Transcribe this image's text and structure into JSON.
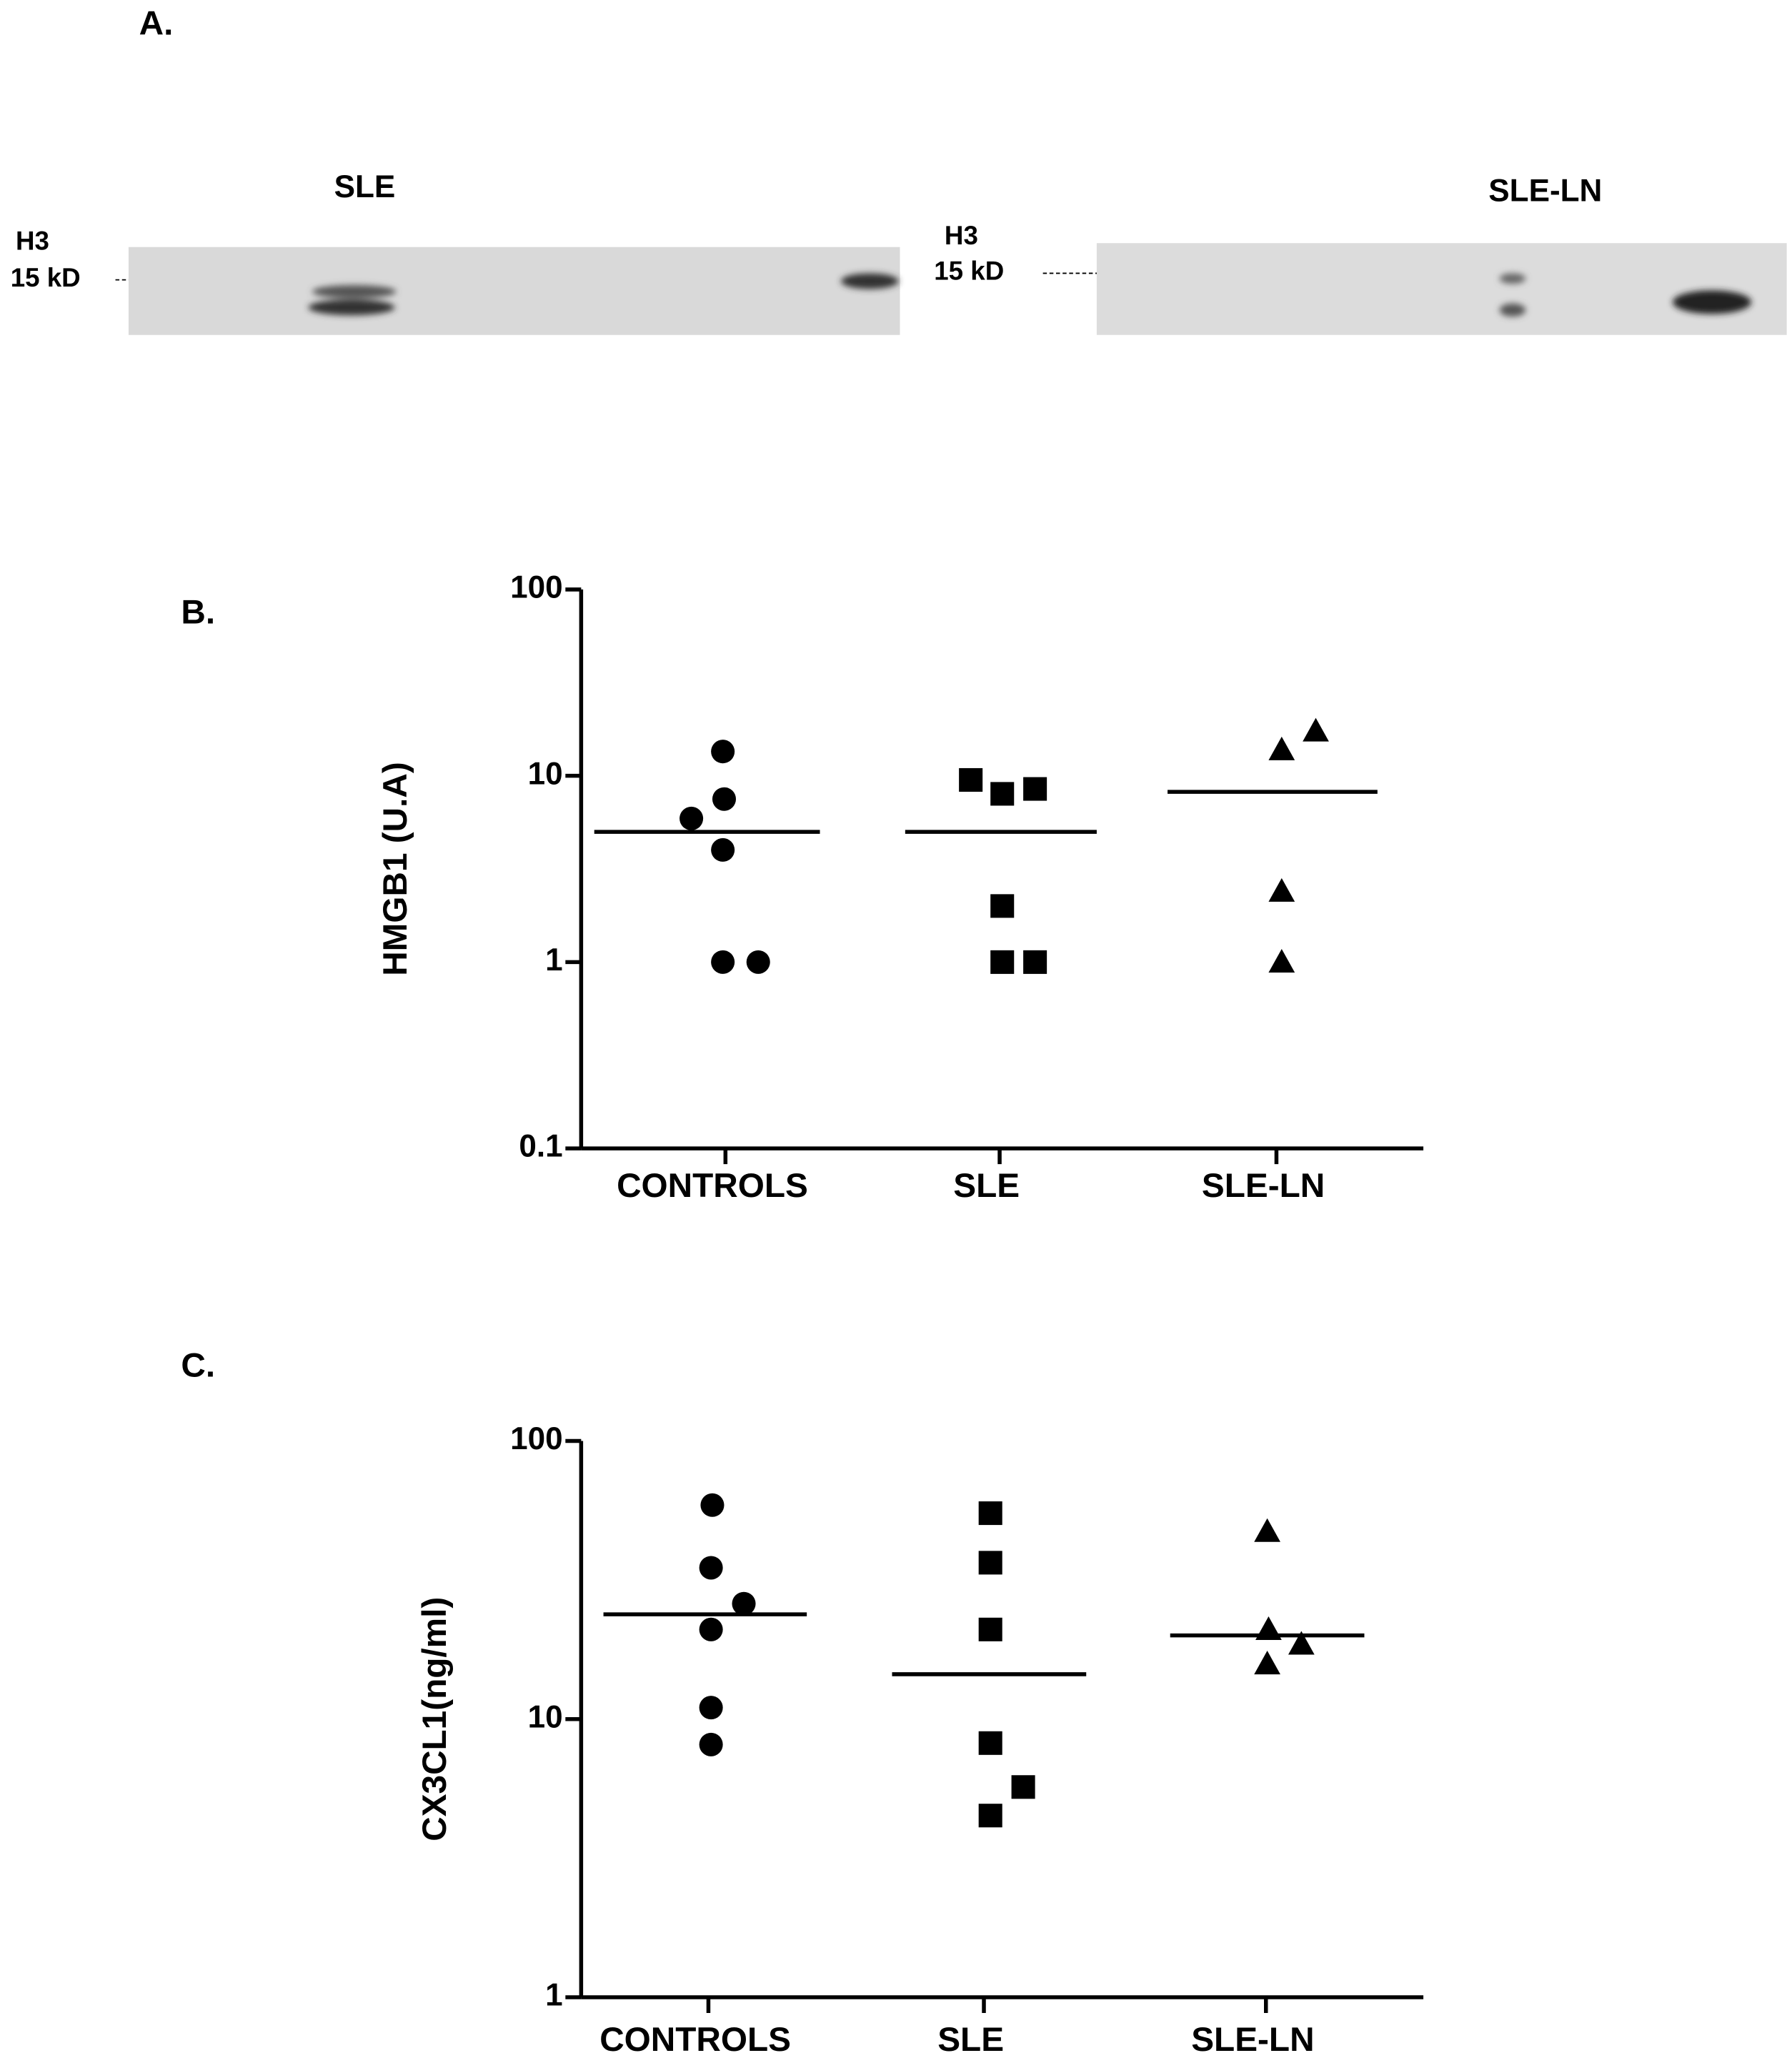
{
  "panel_a": {
    "label": "A.",
    "left_title": "SLE",
    "right_title": "SLE-LN",
    "left_marker_name": "H3",
    "left_marker_size": "15 kD",
    "right_marker_name": "H3",
    "right_marker_size": "15 kD"
  },
  "chart_data": [
    {
      "type": "strip",
      "panel_label": "B.",
      "ylabel": "HMGB1 (U.A)",
      "categories": [
        "CONTROLS",
        "SLE",
        "SLE-LN"
      ],
      "log": true,
      "values": [
        [
          13.5,
          7.5,
          5.9,
          4,
          1,
          1
        ],
        [
          9.5,
          8,
          8.5,
          2,
          1,
          1
        ],
        [
          13.8,
          17.4,
          2.4,
          1
        ]
      ],
      "means": [
        5,
        5,
        8.2
      ],
      "markers": [
        "circle",
        "square",
        "triangle"
      ],
      "color": "#000000",
      "ylim": [
        0.1,
        100
      ],
      "yticks": [
        0.1,
        1,
        10,
        100
      ]
    },
    {
      "type": "strip",
      "panel_label": "C.",
      "ylabel": "CX3CL1(ng/ml)",
      "categories": [
        "CONTROLS",
        "SLE",
        "SLE-LN"
      ],
      "log": true,
      "values": [
        [
          58.8,
          35,
          26,
          21,
          11,
          8.1
        ],
        [
          55,
          36.5,
          21,
          8.2,
          5.7,
          4.5
        ],
        [
          47.3,
          21,
          18.6,
          15.8
        ]
      ],
      "means": [
        23.8,
        14.5,
        20
      ],
      "markers": [
        "circle",
        "square",
        "triangle"
      ],
      "color": "#000000",
      "ylim": [
        1,
        100
      ],
      "yticks": [
        1,
        10,
        100
      ]
    }
  ]
}
